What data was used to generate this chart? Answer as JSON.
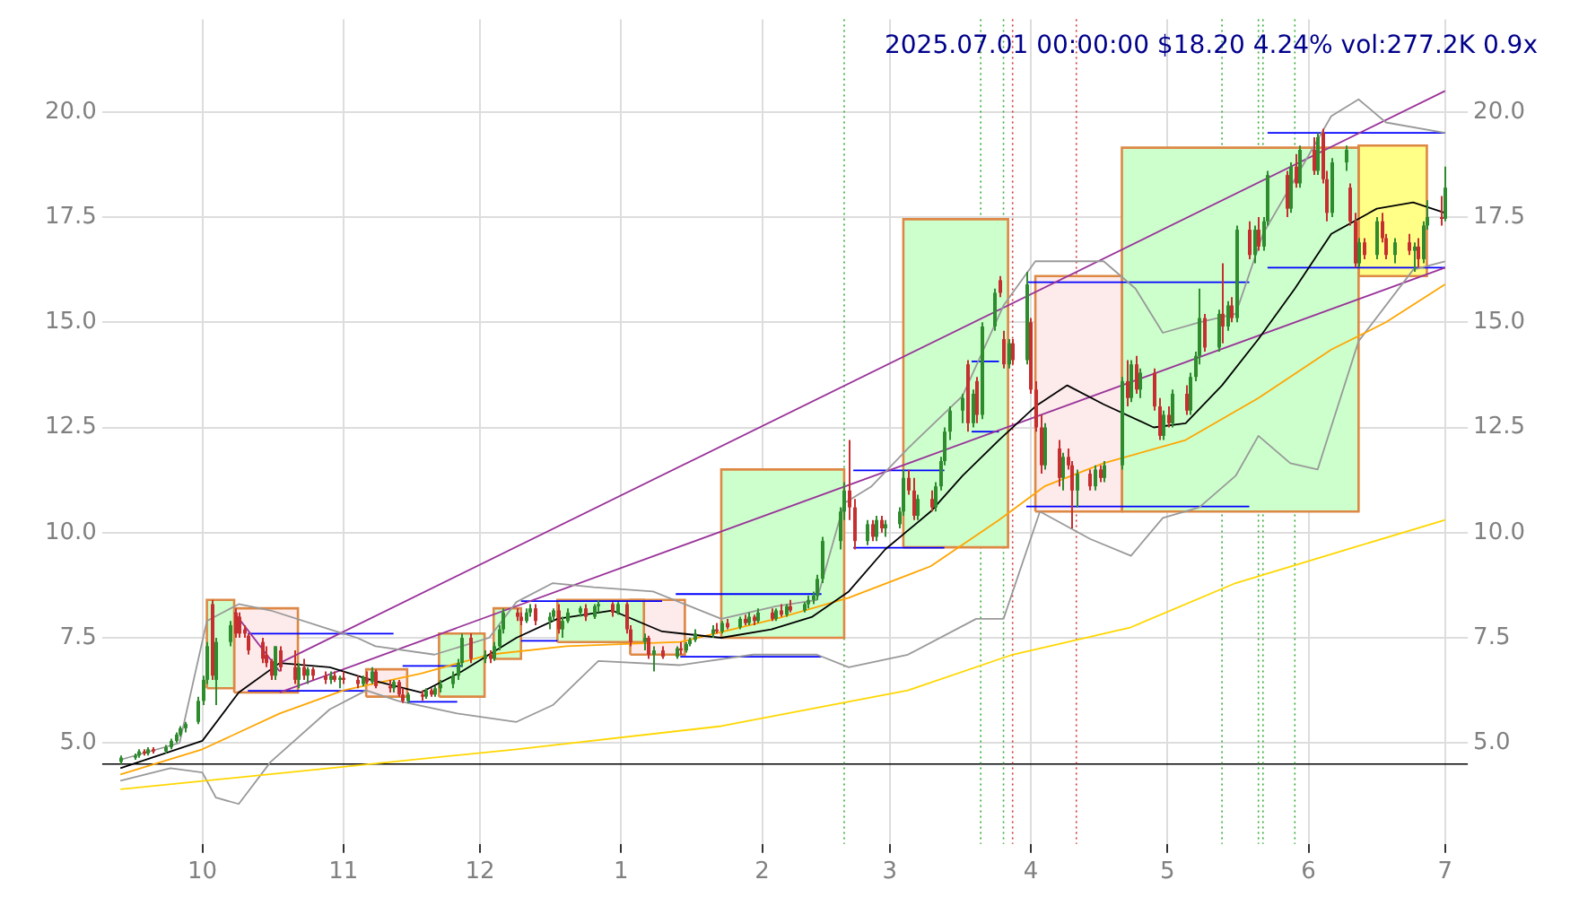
{
  "chart_data": {
    "type": "candlestick",
    "title": "2025.07.01 00:00:00 $18.20 4.24% vol:277.2K 0.9x",
    "x": [
      "2024-09-13",
      "2024-09-16",
      "2024-09-17",
      "2024-09-18",
      "2024-09-19",
      "2024-09-20",
      "2024-09-23",
      "2024-09-24",
      "2024-09-25",
      "2024-09-26",
      "2024-09-27",
      "2024-09-30",
      "2024-10-01",
      "2024-10-02",
      "2024-10-03",
      "2024-10-04",
      "2024-10-07",
      "2024-10-08",
      "2024-10-09",
      "2024-10-10",
      "2024-10-11",
      "2024-10-14",
      "2024-10-15",
      "2024-10-16",
      "2024-10-17",
      "2024-10-18",
      "2024-10-21",
      "2024-10-22",
      "2024-10-23",
      "2024-10-24",
      "2024-10-25",
      "2024-10-28",
      "2024-10-29",
      "2024-10-30",
      "2024-10-31",
      "2024-11-01",
      "2024-11-04",
      "2024-11-05",
      "2024-11-06",
      "2024-11-07",
      "2024-11-08",
      "2024-11-11",
      "2024-11-12",
      "2024-11-13",
      "2024-11-14",
      "2024-11-15",
      "2024-11-18",
      "2024-11-19",
      "2024-11-20",
      "2024-11-21",
      "2024-11-22",
      "2024-11-25",
      "2024-11-26",
      "2024-11-27",
      "2024-11-29",
      "2024-12-02",
      "2024-12-03",
      "2024-12-04",
      "2024-12-05",
      "2024-12-06",
      "2024-12-09",
      "2024-12-10",
      "2024-12-11",
      "2024-12-12",
      "2024-12-13",
      "2024-12-16",
      "2024-12-17",
      "2024-12-18",
      "2024-12-19",
      "2024-12-20",
      "2024-12-23",
      "2024-12-24",
      "2024-12-26",
      "2024-12-27",
      "2024-12-30",
      "2024-12-31",
      "2025-01-02",
      "2025-01-03",
      "2025-01-06",
      "2025-01-07",
      "2025-01-08",
      "2025-01-10",
      "2025-01-13",
      "2025-01-14",
      "2025-01-15",
      "2025-01-16",
      "2025-01-17",
      "2025-01-21",
      "2025-01-22",
      "2025-01-23",
      "2025-01-24",
      "2025-01-27",
      "2025-01-28",
      "2025-01-29",
      "2025-01-30",
      "2025-01-31",
      "2025-02-03",
      "2025-02-04",
      "2025-02-05",
      "2025-02-06",
      "2025-02-07",
      "2025-02-10",
      "2025-02-11",
      "2025-02-12",
      "2025-02-13",
      "2025-02-14",
      "2025-02-18",
      "2025-02-19",
      "2025-02-20",
      "2025-02-21",
      "2025-02-24",
      "2025-02-25",
      "2025-02-26",
      "2025-02-27",
      "2025-02-28",
      "2025-03-03",
      "2025-03-04",
      "2025-03-05",
      "2025-03-06",
      "2025-03-07",
      "2025-03-10",
      "2025-03-11",
      "2025-03-12",
      "2025-03-13",
      "2025-03-14",
      "2025-03-17",
      "2025-03-18",
      "2025-03-19",
      "2025-03-20",
      "2025-03-21",
      "2025-03-24",
      "2025-03-25",
      "2025-03-26",
      "2025-03-27",
      "2025-03-28",
      "2025-03-31",
      "2025-04-01",
      "2025-04-02",
      "2025-04-03",
      "2025-04-04",
      "2025-04-07",
      "2025-04-08",
      "2025-04-09",
      "2025-04-10",
      "2025-04-11",
      "2025-04-14",
      "2025-04-15",
      "2025-04-16",
      "2025-04-17",
      "2025-04-21",
      "2025-04-22",
      "2025-04-23",
      "2025-04-24",
      "2025-04-25",
      "2025-04-28",
      "2025-04-29",
      "2025-04-30",
      "2025-05-01",
      "2025-05-02",
      "2025-05-05",
      "2025-05-06",
      "2025-05-07",
      "2025-05-08",
      "2025-05-09",
      "2025-05-12",
      "2025-05-13",
      "2025-05-14",
      "2025-05-15",
      "2025-05-16",
      "2025-05-19",
      "2025-05-20",
      "2025-05-21",
      "2025-05-22",
      "2025-05-23",
      "2025-05-27",
      "2025-05-28",
      "2025-05-29",
      "2025-05-30",
      "2025-06-02",
      "2025-06-03",
      "2025-06-04",
      "2025-06-05",
      "2025-06-06",
      "2025-06-09",
      "2025-06-10",
      "2025-06-11",
      "2025-06-12",
      "2025-06-13",
      "2025-06-16",
      "2025-06-17",
      "2025-06-18",
      "2025-06-20",
      "2025-06-23",
      "2025-06-24",
      "2025-06-25",
      "2025-06-26",
      "2025-06-27",
      "2025-06-30",
      "2025-07-01"
    ],
    "ohlc": [
      [
        4.55,
        4.7,
        4.5,
        4.65
      ],
      [
        4.65,
        4.75,
        4.6,
        4.7
      ],
      [
        4.7,
        4.85,
        4.65,
        4.8
      ],
      [
        4.8,
        4.85,
        4.7,
        4.75
      ],
      [
        4.75,
        4.9,
        4.7,
        4.85
      ],
      [
        4.85,
        4.9,
        4.75,
        4.8
      ],
      [
        4.8,
        4.95,
        4.75,
        4.9
      ],
      [
        4.9,
        5.1,
        4.85,
        5.05
      ],
      [
        5.05,
        5.25,
        5.0,
        5.2
      ],
      [
        5.2,
        5.4,
        5.15,
        5.35
      ],
      [
        5.35,
        5.5,
        5.25,
        5.45
      ],
      [
        5.5,
        6.1,
        5.45,
        6.0
      ],
      [
        6.0,
        6.6,
        5.9,
        6.5
      ],
      [
        6.5,
        7.4,
        6.4,
        7.3
      ],
      [
        8.3,
        8.4,
        6.5,
        6.6
      ],
      [
        6.5,
        7.5,
        5.9,
        7.4
      ],
      [
        7.4,
        7.9,
        7.3,
        7.8
      ],
      [
        8.1,
        8.2,
        7.5,
        7.6
      ],
      [
        8.0,
        8.1,
        7.5,
        7.6
      ],
      [
        7.7,
        7.8,
        7.5,
        7.6
      ],
      [
        7.55,
        7.6,
        7.1,
        7.2
      ],
      [
        7.4,
        7.5,
        6.9,
        7.0
      ],
      [
        7.1,
        7.3,
        6.8,
        6.9
      ],
      [
        6.95,
        7.0,
        6.5,
        6.6
      ],
      [
        6.6,
        7.3,
        6.5,
        7.3
      ],
      [
        7.2,
        7.3,
        6.7,
        6.8
      ],
      [
        6.8,
        7.2,
        6.4,
        6.5
      ],
      [
        6.5,
        6.9,
        6.3,
        6.8
      ],
      [
        6.8,
        7.0,
        6.5,
        6.6
      ],
      [
        6.6,
        6.8,
        6.4,
        6.75
      ],
      [
        6.75,
        6.8,
        6.5,
        6.6
      ],
      [
        6.6,
        6.7,
        6.4,
        6.5
      ],
      [
        6.5,
        6.7,
        6.4,
        6.6
      ],
      [
        6.6,
        6.7,
        6.45,
        6.5
      ],
      [
        6.5,
        6.6,
        6.3,
        6.55
      ],
      [
        6.55,
        6.7,
        6.4,
        6.5
      ],
      [
        6.5,
        6.6,
        6.3,
        6.4
      ],
      [
        6.4,
        6.6,
        6.35,
        6.55
      ],
      [
        6.55,
        6.7,
        6.4,
        6.45
      ],
      [
        6.45,
        6.8,
        6.4,
        6.7
      ],
      [
        6.7,
        6.75,
        6.3,
        6.35
      ],
      [
        6.35,
        6.5,
        6.2,
        6.3
      ],
      [
        6.3,
        6.5,
        6.2,
        6.45
      ],
      [
        6.45,
        6.5,
        6.1,
        6.15
      ],
      [
        6.15,
        6.3,
        5.95,
        6.0
      ],
      [
        6.0,
        6.2,
        5.95,
        6.15
      ],
      [
        6.15,
        6.25,
        6.0,
        6.1
      ],
      [
        6.1,
        6.3,
        6.05,
        6.25
      ],
      [
        6.25,
        6.3,
        6.1,
        6.15
      ],
      [
        6.15,
        6.35,
        6.1,
        6.3
      ],
      [
        6.3,
        6.5,
        6.2,
        6.4
      ],
      [
        6.4,
        6.7,
        6.3,
        6.6
      ],
      [
        6.6,
        7.0,
        6.5,
        6.9
      ],
      [
        6.9,
        7.6,
        6.8,
        7.5
      ],
      [
        7.5,
        7.6,
        6.9,
        7.0
      ],
      [
        7.0,
        7.2,
        6.9,
        7.1
      ],
      [
        7.1,
        7.2,
        6.9,
        7.0
      ],
      [
        7.0,
        7.4,
        6.95,
        7.3
      ],
      [
        7.3,
        7.8,
        7.2,
        7.7
      ],
      [
        7.7,
        8.2,
        7.6,
        8.1
      ],
      [
        8.1,
        8.2,
        7.9,
        8.0
      ],
      [
        8.0,
        8.1,
        7.8,
        7.9
      ],
      [
        7.9,
        8.2,
        7.85,
        8.1
      ],
      [
        8.1,
        8.3,
        8.0,
        8.2
      ],
      [
        8.2,
        8.3,
        7.8,
        7.9
      ],
      [
        7.9,
        8.1,
        7.7,
        8.0
      ],
      [
        8.0,
        8.2,
        7.9,
        8.15
      ],
      [
        8.15,
        8.3,
        7.6,
        7.7
      ],
      [
        7.7,
        8.0,
        7.5,
        7.9
      ],
      [
        7.9,
        8.2,
        7.85,
        8.1
      ],
      [
        8.1,
        8.25,
        8.0,
        8.2
      ],
      [
        8.2,
        8.3,
        7.9,
        8.0
      ],
      [
        8.0,
        8.3,
        7.95,
        8.25
      ],
      [
        8.25,
        8.4,
        8.1,
        8.3
      ],
      [
        8.3,
        8.35,
        8.0,
        8.1
      ],
      [
        8.1,
        8.35,
        8.05,
        8.3
      ],
      [
        8.3,
        8.35,
        7.6,
        7.7
      ],
      [
        7.7,
        7.8,
        7.3,
        7.4
      ],
      [
        7.4,
        7.6,
        7.2,
        7.5
      ],
      [
        7.5,
        7.55,
        7.0,
        7.1
      ],
      [
        7.1,
        7.3,
        6.7,
        7.2
      ],
      [
        7.2,
        7.3,
        7.0,
        7.05
      ],
      [
        7.05,
        7.3,
        7.0,
        7.25
      ],
      [
        7.25,
        7.4,
        7.1,
        7.2
      ],
      [
        7.2,
        7.4,
        7.15,
        7.35
      ],
      [
        7.35,
        7.5,
        7.3,
        7.45
      ],
      [
        7.45,
        7.7,
        7.4,
        7.6
      ],
      [
        7.6,
        7.8,
        7.5,
        7.7
      ],
      [
        7.7,
        7.85,
        7.6,
        7.65
      ],
      [
        7.65,
        7.9,
        7.6,
        7.85
      ],
      [
        7.85,
        7.95,
        7.7,
        7.75
      ],
      [
        7.75,
        8.0,
        7.7,
        7.95
      ],
      [
        7.95,
        8.05,
        7.8,
        7.85
      ],
      [
        7.85,
        8.1,
        7.8,
        8.0
      ],
      [
        8.0,
        8.05,
        7.8,
        7.9
      ],
      [
        7.9,
        8.2,
        7.85,
        8.1
      ],
      [
        8.1,
        8.2,
        7.9,
        7.95
      ],
      [
        7.95,
        8.2,
        7.9,
        8.15
      ],
      [
        8.15,
        8.3,
        8.0,
        8.05
      ],
      [
        8.05,
        8.3,
        8.0,
        8.25
      ],
      [
        8.25,
        8.4,
        8.1,
        8.15
      ],
      [
        8.15,
        8.35,
        8.1,
        8.3
      ],
      [
        8.3,
        8.5,
        8.2,
        8.4
      ],
      [
        8.4,
        8.6,
        8.3,
        8.5
      ],
      [
        8.5,
        9.0,
        8.4,
        8.9
      ],
      [
        8.9,
        9.9,
        8.8,
        9.8
      ],
      [
        9.8,
        10.6,
        9.6,
        10.5
      ],
      [
        10.5,
        11.2,
        10.3,
        11.0
      ],
      [
        11.0,
        12.2,
        10.3,
        10.6
      ],
      [
        10.6,
        10.8,
        9.6,
        9.8
      ],
      [
        9.8,
        10.3,
        9.7,
        10.2
      ],
      [
        10.2,
        10.3,
        9.8,
        9.9
      ],
      [
        9.9,
        10.4,
        9.8,
        10.3
      ],
      [
        10.3,
        10.4,
        10.0,
        10.1
      ],
      [
        10.1,
        10.3,
        9.9,
        10.2
      ],
      [
        10.2,
        10.6,
        10.1,
        10.5
      ],
      [
        10.5,
        11.5,
        10.4,
        11.3
      ],
      [
        11.3,
        11.5,
        10.9,
        11.0
      ],
      [
        11.0,
        11.3,
        10.3,
        10.4
      ],
      [
        10.4,
        10.9,
        10.3,
        10.8
      ],
      [
        10.8,
        11.0,
        10.5,
        10.6
      ],
      [
        10.6,
        11.2,
        10.5,
        11.1
      ],
      [
        11.1,
        11.8,
        11.0,
        11.7
      ],
      [
        11.7,
        12.5,
        11.6,
        12.4
      ],
      [
        12.4,
        13.0,
        12.2,
        12.9
      ],
      [
        12.9,
        13.3,
        12.6,
        13.2
      ],
      [
        14.0,
        14.1,
        12.4,
        12.6
      ],
      [
        12.6,
        13.4,
        12.5,
        13.3
      ],
      [
        13.6,
        13.7,
        12.6,
        12.8
      ],
      [
        12.8,
        15.0,
        12.7,
        14.9
      ],
      [
        14.9,
        15.8,
        14.8,
        15.7
      ],
      [
        16.0,
        16.1,
        15.6,
        15.7
      ],
      [
        14.6,
        14.8,
        13.9,
        14.0
      ],
      [
        14.0,
        14.6,
        13.9,
        14.5
      ],
      [
        14.5,
        14.6,
        14.0,
        14.1
      ],
      [
        14.1,
        16.2,
        14.0,
        15.9
      ],
      [
        15.0,
        15.1,
        13.3,
        13.4
      ],
      [
        13.4,
        13.6,
        12.4,
        12.5
      ],
      [
        12.5,
        12.8,
        11.4,
        11.6
      ],
      [
        11.6,
        12.6,
        11.5,
        12.5
      ],
      [
        12.0,
        12.2,
        11.1,
        11.3
      ],
      [
        11.3,
        11.9,
        11.0,
        11.8
      ],
      [
        11.8,
        12.0,
        11.5,
        11.6
      ],
      [
        11.6,
        11.7,
        10.1,
        11.0
      ],
      [
        11.0,
        11.5,
        10.6,
        11.4
      ],
      [
        11.4,
        11.5,
        11.0,
        11.1
      ],
      [
        11.1,
        11.6,
        11.0,
        11.5
      ],
      [
        11.5,
        11.6,
        11.2,
        11.3
      ],
      [
        11.3,
        11.7,
        11.2,
        11.6
      ],
      [
        11.6,
        13.7,
        11.5,
        13.6
      ],
      [
        13.6,
        14.1,
        13.0,
        13.2
      ],
      [
        13.2,
        14.1,
        13.1,
        14.0
      ],
      [
        14.0,
        14.2,
        13.3,
        13.4
      ],
      [
        13.4,
        13.9,
        13.2,
        13.8
      ],
      [
        13.8,
        13.9,
        12.9,
        13.0
      ],
      [
        13.0,
        13.2,
        12.2,
        12.3
      ],
      [
        12.3,
        12.9,
        12.2,
        12.8
      ],
      [
        12.8,
        13.0,
        12.5,
        12.6
      ],
      [
        12.6,
        13.4,
        12.5,
        13.3
      ],
      [
        13.3,
        13.5,
        12.8,
        12.9
      ],
      [
        12.9,
        13.8,
        12.8,
        13.7
      ],
      [
        13.7,
        14.3,
        13.6,
        14.2
      ],
      [
        14.2,
        15.8,
        14.0,
        15.1
      ],
      [
        15.1,
        15.2,
        14.3,
        14.4
      ],
      [
        14.4,
        15.3,
        14.3,
        15.2
      ],
      [
        15.2,
        16.4,
        14.5,
        14.9
      ],
      [
        14.9,
        15.5,
        14.8,
        15.4
      ],
      [
        15.4,
        15.6,
        15.0,
        15.1
      ],
      [
        15.1,
        17.3,
        15.0,
        17.2
      ],
      [
        17.2,
        17.4,
        16.5,
        16.6
      ],
      [
        16.6,
        17.3,
        16.4,
        17.2
      ],
      [
        17.2,
        17.5,
        16.7,
        16.8
      ],
      [
        16.8,
        17.5,
        16.7,
        17.4
      ],
      [
        17.4,
        18.6,
        17.3,
        18.5
      ],
      [
        18.5,
        18.6,
        17.5,
        17.7
      ],
      [
        17.7,
        18.8,
        17.6,
        18.7
      ],
      [
        18.7,
        19.0,
        18.2,
        18.3
      ],
      [
        18.3,
        19.2,
        18.2,
        19.1
      ],
      [
        19.1,
        19.4,
        18.5,
        18.6
      ],
      [
        18.6,
        19.5,
        18.5,
        19.4
      ],
      [
        19.5,
        19.6,
        18.3,
        18.4
      ],
      [
        18.4,
        18.6,
        17.4,
        17.6
      ],
      [
        17.6,
        18.9,
        17.5,
        18.8
      ],
      [
        18.8,
        19.2,
        18.6,
        19.1
      ],
      [
        18.2,
        18.3,
        17.3,
        17.4
      ],
      [
        17.4,
        17.6,
        16.3,
        16.4
      ],
      [
        16.4,
        17.0,
        16.3,
        16.9
      ],
      [
        16.9,
        17.0,
        16.5,
        16.6
      ],
      [
        16.6,
        17.5,
        16.5,
        17.4
      ],
      [
        17.4,
        17.6,
        16.9,
        17.0
      ],
      [
        17.0,
        17.1,
        16.5,
        16.6
      ],
      [
        16.6,
        17.0,
        16.4,
        16.9
      ],
      [
        16.9,
        17.1,
        16.6,
        16.7
      ],
      [
        16.7,
        16.9,
        16.2,
        16.8
      ],
      [
        16.8,
        17.0,
        16.3,
        16.5
      ],
      [
        16.5,
        17.4,
        16.4,
        17.3
      ],
      [
        17.3,
        17.9,
        17.2,
        17.5
      ],
      [
        17.5,
        18.0,
        17.3,
        17.46
      ],
      [
        17.46,
        18.7,
        17.4,
        18.2
      ]
    ],
    "series": [
      {
        "type": "area",
        "color": "#ccffcc",
        "x": [
          "2024-10-02",
          "2024-10-08",
          "2024-10-08",
          "2024-10-02",
          "2024-10-02"
        ],
        "values": [
          6.3,
          6.3,
          8.4,
          8.4,
          6.3
        ]
      },
      {
        "type": "area",
        "color": "#fdeaea",
        "x": [
          "2024-10-08",
          "2024-10-22",
          "2024-10-22",
          "2024-10-08",
          "2024-10-08"
        ],
        "values": [
          6.2,
          6.2,
          8.2,
          8.2,
          6.2
        ]
      },
      {
        "type": "area",
        "color": "#fdeaea",
        "x": [
          "2024-11-06",
          "2024-11-15",
          "2024-11-15",
          "2024-11-06",
          "2024-11-06"
        ],
        "values": [
          6.1,
          6.1,
          6.75,
          6.75,
          6.1
        ]
      },
      {
        "type": "area",
        "color": "#ccffcc",
        "x": [
          "2024-11-22",
          "2024-12-02",
          "2024-12-02",
          "2024-11-22",
          "2024-11-22"
        ],
        "values": [
          6.1,
          6.1,
          7.6,
          7.6,
          6.1
        ]
      },
      {
        "type": "area",
        "color": "#ccffcc",
        "x": [
          "2024-12-04",
          "2024-12-10",
          "2024-12-10",
          "2024-12-04",
          "2024-12-04"
        ],
        "values": [
          7.0,
          7.0,
          8.2,
          8.2,
          7.0
        ]
      },
      {
        "type": "area",
        "color": "#ccffcc",
        "x": [
          "2024-12-18",
          "2025-01-06",
          "2025-01-06",
          "2024-12-18",
          "2024-12-18"
        ],
        "values": [
          7.4,
          7.4,
          8.4,
          8.4,
          7.4
        ]
      },
      {
        "type": "area",
        "color": "#fdeaea",
        "x": [
          "2025-01-03",
          "2025-01-15",
          "2025-01-15",
          "2025-01-03",
          "2025-01-03"
        ],
        "values": [
          7.1,
          7.1,
          8.4,
          8.4,
          7.1
        ]
      },
      {
        "type": "area",
        "color": "#ccffcc",
        "x": [
          "2025-01-23",
          "2025-02-19",
          "2025-02-19",
          "2025-01-23",
          "2025-01-23"
        ],
        "values": [
          7.5,
          7.5,
          11.5,
          11.5,
          7.5
        ]
      },
      {
        "type": "area",
        "color": "#ccffcc",
        "x": [
          "2025-03-04",
          "2025-03-27",
          "2025-03-27",
          "2025-03-04",
          "2025-03-04"
        ],
        "values": [
          9.65,
          9.65,
          17.45,
          17.45,
          9.65
        ]
      },
      {
        "type": "area",
        "color": "#fdeaea",
        "x": [
          "2025-04-02",
          "2025-04-21",
          "2025-04-21",
          "2025-04-02",
          "2025-04-02"
        ],
        "values": [
          10.5,
          10.5,
          16.1,
          16.1,
          10.5
        ]
      },
      {
        "type": "area",
        "color": "#ccffcc",
        "x": [
          "2025-04-21",
          "2025-06-12",
          "2025-06-12",
          "2025-04-21",
          "2025-04-21"
        ],
        "values": [
          10.5,
          10.5,
          19.15,
          19.15,
          10.5
        ]
      },
      {
        "type": "area",
        "color": "#ffff88",
        "x": [
          "2025-06-12",
          "2025-06-27",
          "2025-06-27",
          "2025-06-12",
          "2025-06-12"
        ],
        "values": [
          16.1,
          16.1,
          19.2,
          19.2,
          16.1
        ]
      },
      {
        "type": "line",
        "color": "#000000",
        "x": [
          "2024-09-13",
          "2024-10-01",
          "2024-10-09",
          "2024-10-18",
          "2024-10-29",
          "2024-11-07",
          "2024-11-18",
          "2024-11-27",
          "2024-12-09",
          "2024-12-18",
          "2024-12-30",
          "2025-01-10",
          "2025-01-23",
          "2025-02-03",
          "2025-02-12",
          "2025-02-20",
          "2025-02-28",
          "2025-03-10",
          "2025-03-17",
          "2025-03-25",
          "2025-04-02",
          "2025-04-09",
          "2025-04-17",
          "2025-04-28",
          "2025-05-05",
          "2025-05-13",
          "2025-05-21",
          "2025-05-29",
          "2025-06-06",
          "2025-06-16",
          "2025-06-24",
          "2025-07-01"
        ],
        "values": [
          4.4,
          5.05,
          6.2,
          6.9,
          6.8,
          6.5,
          6.2,
          6.7,
          7.5,
          7.95,
          8.15,
          7.65,
          7.5,
          7.7,
          8.0,
          8.6,
          9.6,
          10.5,
          11.35,
          12.2,
          13.0,
          13.5,
          13.05,
          12.5,
          12.6,
          13.5,
          14.6,
          15.8,
          17.1,
          17.7,
          17.85,
          17.6
        ]
      },
      {
        "type": "line",
        "color": "#ffa500",
        "x": [
          "2024-09-13",
          "2024-10-01",
          "2024-10-18",
          "2024-11-01",
          "2024-11-18",
          "2024-12-03",
          "2024-12-20",
          "2025-01-14",
          "2025-02-04",
          "2025-02-20",
          "2025-03-10",
          "2025-03-25",
          "2025-04-04",
          "2025-04-17",
          "2025-05-05",
          "2025-05-21",
          "2025-06-06",
          "2025-06-18",
          "2025-07-01"
        ],
        "values": [
          4.25,
          4.85,
          5.7,
          6.25,
          6.65,
          7.1,
          7.3,
          7.4,
          7.95,
          8.45,
          9.2,
          10.3,
          11.1,
          11.65,
          12.2,
          13.2,
          14.35,
          15.0,
          15.9
        ]
      },
      {
        "type": "line",
        "color": "#ffd700",
        "x": [
          "2024-09-13",
          "2024-10-29",
          "2024-12-09",
          "2025-01-23",
          "2025-03-05",
          "2025-03-28",
          "2025-04-23",
          "2025-05-16",
          "2025-06-11",
          "2025-07-01"
        ],
        "values": [
          3.9,
          4.4,
          4.85,
          5.4,
          6.25,
          7.1,
          7.75,
          8.8,
          9.65,
          10.3
        ]
      },
      {
        "type": "line",
        "color": "#999999",
        "x": [
          "2024-09-13",
          "2024-09-26",
          "2024-10-02",
          "2024-10-09",
          "2024-10-16",
          "2024-10-29",
          "2024-11-04",
          "2024-11-08",
          "2024-11-21",
          "2024-12-03",
          "2024-12-09",
          "2024-12-17",
          "2024-12-26",
          "2025-01-08",
          "2025-01-23",
          "2025-02-04",
          "2025-02-13",
          "2025-02-19",
          "2025-02-25",
          "2025-03-05",
          "2025-03-17",
          "2025-03-26",
          "2025-04-02",
          "2025-04-09",
          "2025-04-17",
          "2025-04-24",
          "2025-04-30",
          "2025-05-08",
          "2025-05-16",
          "2025-05-22",
          "2025-05-29",
          "2025-06-06",
          "2025-06-12",
          "2025-06-18",
          "2025-07-01"
        ],
        "values": [
          4.6,
          5.0,
          7.9,
          8.3,
          8.15,
          7.7,
          7.5,
          7.3,
          7.1,
          7.5,
          8.35,
          8.8,
          8.7,
          8.6,
          7.95,
          8.25,
          8.4,
          10.7,
          11.1,
          12.0,
          13.25,
          15.4,
          16.45,
          16.45,
          16.45,
          15.8,
          14.75,
          15.0,
          15.2,
          17.1,
          18.4,
          19.9,
          20.3,
          19.75,
          19.5
        ]
      },
      {
        "type": "line",
        "color": "#999999",
        "x": [
          "2024-09-13",
          "2024-09-24",
          "2024-10-01",
          "2024-10-04",
          "2024-10-09",
          "2024-10-16",
          "2024-10-29",
          "2024-11-06",
          "2024-11-13",
          "2024-11-26",
          "2024-12-09",
          "2024-12-17",
          "2024-12-27",
          "2025-01-14",
          "2025-01-30",
          "2025-02-13",
          "2025-02-20",
          "2025-03-05",
          "2025-03-20",
          "2025-03-26",
          "2025-04-03",
          "2025-04-14",
          "2025-04-23",
          "2025-04-30",
          "2025-05-08",
          "2025-05-16",
          "2025-05-21",
          "2025-05-28",
          "2025-06-03",
          "2025-06-12",
          "2025-06-24",
          "2025-07-01"
        ],
        "values": [
          4.1,
          4.4,
          4.3,
          3.7,
          3.55,
          4.55,
          5.8,
          6.25,
          6.0,
          5.7,
          5.5,
          5.9,
          6.95,
          6.85,
          7.1,
          7.1,
          6.8,
          7.1,
          7.95,
          7.95,
          10.5,
          9.85,
          9.45,
          10.35,
          10.6,
          11.35,
          12.3,
          11.65,
          11.5,
          14.55,
          16.25,
          16.45
        ]
      },
      {
        "type": "line",
        "color": "#993399",
        "x": [
          "2024-10-08",
          "2024-10-18"
        ],
        "values": [
          8.1,
          6.7
        ]
      },
      {
        "type": "line",
        "color": "#993399",
        "x": [
          "2024-10-18",
          "2025-07-01"
        ],
        "values": [
          6.9,
          20.5
        ]
      },
      {
        "type": "line",
        "color": "#993399",
        "x": [
          "2024-10-18",
          "2025-07-01"
        ],
        "values": [
          6.2,
          16.3
        ]
      },
      {
        "type": "line",
        "color": "#0000ff",
        "x": [
          "2024-10-11",
          "2024-11-12"
        ],
        "values": [
          7.6,
          7.6
        ]
      },
      {
        "type": "line",
        "color": "#0000ff",
        "x": [
          "2024-10-11",
          "2024-11-06"
        ],
        "values": [
          6.24,
          6.24
        ]
      },
      {
        "type": "line",
        "color": "#0000ff",
        "x": [
          "2024-11-14",
          "2024-11-27"
        ],
        "values": [
          6.83,
          6.83
        ]
      },
      {
        "type": "line",
        "color": "#0000ff",
        "x": [
          "2024-11-15",
          "2024-11-26"
        ],
        "values": [
          5.98,
          5.98
        ]
      },
      {
        "type": "line",
        "color": "#0000ff",
        "x": [
          "2024-12-10",
          "2025-01-10"
        ],
        "values": [
          8.37,
          8.37
        ]
      },
      {
        "type": "line",
        "color": "#0000ff",
        "x": [
          "2024-12-10",
          "2024-12-18"
        ],
        "values": [
          7.43,
          7.43
        ]
      },
      {
        "type": "line",
        "color": "#0000ff",
        "x": [
          "2025-01-13",
          "2025-02-14"
        ],
        "values": [
          8.54,
          8.54
        ]
      },
      {
        "type": "line",
        "color": "#0000ff",
        "x": [
          "2025-01-14",
          "2025-02-14"
        ],
        "values": [
          7.05,
          7.05
        ]
      },
      {
        "type": "line",
        "color": "#0000ff",
        "x": [
          "2025-02-21",
          "2025-03-13"
        ],
        "values": [
          11.48,
          11.48
        ]
      },
      {
        "type": "line",
        "color": "#0000ff",
        "x": [
          "2025-02-21",
          "2025-03-13"
        ],
        "values": [
          9.64,
          9.64
        ]
      },
      {
        "type": "line",
        "color": "#0000ff",
        "x": [
          "2025-03-19",
          "2025-03-25"
        ],
        "values": [
          14.07,
          14.07
        ]
      },
      {
        "type": "line",
        "color": "#0000ff",
        "x": [
          "2025-03-19",
          "2025-03-25"
        ],
        "values": [
          12.4,
          12.4
        ]
      },
      {
        "type": "line",
        "color": "#0000ff",
        "x": [
          "2025-03-31",
          "2025-05-19"
        ],
        "values": [
          15.95,
          15.95
        ]
      },
      {
        "type": "line",
        "color": "#0000ff",
        "x": [
          "2025-03-31",
          "2025-05-19"
        ],
        "values": [
          10.62,
          10.62
        ]
      },
      {
        "type": "line",
        "color": "#0000ff",
        "x": [
          "2025-05-23",
          "2025-07-01"
        ],
        "values": [
          19.5,
          19.5
        ]
      },
      {
        "type": "line",
        "color": "#0000ff",
        "x": [
          "2025-05-23",
          "2025-07-01"
        ],
        "values": [
          16.3,
          16.3
        ]
      }
    ],
    "ref_lines": [
      {
        "axis": "y",
        "value": 4.5,
        "color": "#000000",
        "line_style": "solid"
      },
      {
        "axis": "x",
        "value": "2025-02-19",
        "color": "#33aa33",
        "line_style": "dotted"
      },
      {
        "axis": "x",
        "value": "2025-03-21",
        "color": "#33aa33",
        "line_style": "dotted"
      },
      {
        "axis": "x",
        "value": "2025-03-26",
        "color": "#33aa33",
        "line_style": "dotted"
      },
      {
        "axis": "x",
        "value": "2025-03-28",
        "color": "#cc3333",
        "line_style": "dotted"
      },
      {
        "axis": "x",
        "value": "2025-04-11",
        "color": "#cc3333",
        "line_style": "dotted"
      },
      {
        "axis": "x",
        "value": "2025-05-13",
        "color": "#33aa33",
        "line_style": "dotted"
      },
      {
        "axis": "x",
        "value": "2025-05-21",
        "color": "#33aa33",
        "line_style": "dotted"
      },
      {
        "axis": "x",
        "value": "2025-05-22",
        "color": "#33aa33",
        "line_style": "dotted"
      },
      {
        "axis": "x",
        "value": "2025-05-29",
        "color": "#33aa33",
        "line_style": "dotted"
      }
    ],
    "xlim": [
      "2024-09-09",
      "2025-07-06"
    ],
    "xticks": [
      {
        "value": "2024-10-01",
        "label": "10"
      },
      {
        "value": "2024-11-01",
        "label": "11"
      },
      {
        "value": "2024-12-01",
        "label": "12"
      },
      {
        "value": "2025-01-01",
        "label": "1"
      },
      {
        "value": "2025-02-01",
        "label": "2"
      },
      {
        "value": "2025-03-01",
        "label": "3"
      },
      {
        "value": "2025-04-01",
        "label": "4"
      },
      {
        "value": "2025-05-01",
        "label": "5"
      },
      {
        "value": "2025-06-01",
        "label": "6"
      },
      {
        "value": "2025-07-01",
        "label": "7"
      }
    ],
    "ylim": [
      2.6,
      22.2
    ],
    "yticks": [
      {
        "value": 5,
        "label": "5.0"
      },
      {
        "value": 7.5,
        "label": "7.5"
      },
      {
        "value": 10,
        "label": "10.0"
      },
      {
        "value": 12.5,
        "label": "12.5"
      },
      {
        "value": 15,
        "label": "15.0"
      },
      {
        "value": 17.5,
        "label": "17.5"
      },
      {
        "value": 20,
        "label": "20.0"
      }
    ],
    "y2lim": [
      2.6,
      22.2
    ],
    "y2ticks": [
      {
        "value": 5,
        "label": "5.0"
      },
      {
        "value": 7.5,
        "label": "7.5"
      },
      {
        "value": 10,
        "label": "10.0"
      },
      {
        "value": 12.5,
        "label": "12.5"
      },
      {
        "value": 15,
        "label": "15.0"
      },
      {
        "value": 17.5,
        "label": "17.5"
      },
      {
        "value": 20,
        "label": "20.0"
      }
    ],
    "grid": true
  }
}
